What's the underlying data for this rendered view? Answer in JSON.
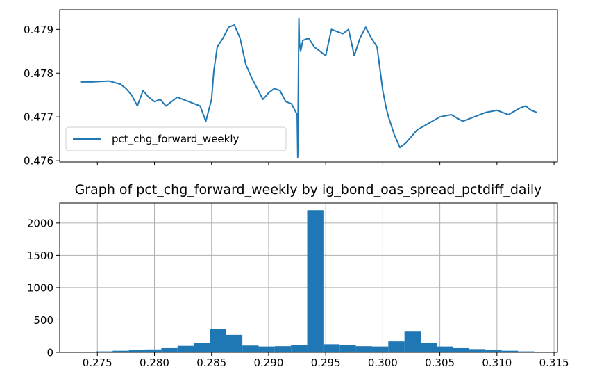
{
  "chart_data": [
    {
      "type": "line",
      "series": [
        {
          "name": "pct_chg_forward_weekly",
          "color": "#1f77b4",
          "x": [
            0.2735,
            0.2745,
            0.276,
            0.277,
            0.2775,
            0.278,
            0.2785,
            0.279,
            0.2795,
            0.28,
            0.2805,
            0.281,
            0.2815,
            0.282,
            0.2825,
            0.283,
            0.2835,
            0.284,
            0.2845,
            0.2848,
            0.285,
            0.2852,
            0.2855,
            0.286,
            0.2865,
            0.287,
            0.2875,
            0.288,
            0.2885,
            0.289,
            0.2895,
            0.29,
            0.2905,
            0.291,
            0.2915,
            0.292,
            0.2925,
            0.29255,
            0.29265,
            0.2927,
            0.2928,
            0.293,
            0.2935,
            0.294,
            0.2945,
            0.295,
            0.2955,
            0.296,
            0.2965,
            0.297,
            0.2975,
            0.298,
            0.2985,
            0.299,
            0.2995,
            0.3,
            0.3003,
            0.3005,
            0.301,
            0.3015,
            0.302,
            0.3025,
            0.303,
            0.304,
            0.305,
            0.306,
            0.307,
            0.308,
            0.309,
            0.31,
            0.311,
            0.312,
            0.3125,
            0.313,
            0.3135
          ],
          "y": [
            0.4778,
            0.4778,
            0.47782,
            0.47775,
            0.47765,
            0.4775,
            0.47725,
            0.4776,
            0.47745,
            0.47735,
            0.4774,
            0.47725,
            0.47735,
            0.47745,
            0.4774,
            0.47735,
            0.4773,
            0.47725,
            0.4769,
            0.4772,
            0.4774,
            0.47805,
            0.4786,
            0.4788,
            0.47905,
            0.4791,
            0.4788,
            0.4782,
            0.4779,
            0.47765,
            0.4774,
            0.47755,
            0.47765,
            0.4776,
            0.47735,
            0.4773,
            0.47705,
            0.47608,
            0.47925,
            0.4787,
            0.4785,
            0.47875,
            0.4788,
            0.4786,
            0.4785,
            0.4784,
            0.479,
            0.47895,
            0.4789,
            0.479,
            0.4784,
            0.4788,
            0.47905,
            0.4788,
            0.4786,
            0.4776,
            0.4772,
            0.477,
            0.4766,
            0.4763,
            0.4764,
            0.47655,
            0.4767,
            0.47685,
            0.477,
            0.47705,
            0.4769,
            0.477,
            0.4771,
            0.47715,
            0.47705,
            0.4772,
            0.47725,
            0.47715,
            0.4771
          ]
        }
      ],
      "ylim": [
        0.47597,
        0.47945
      ],
      "xlim": [
        0.2717,
        0.3153
      ],
      "yticks": [
        "0.476",
        "0.477",
        "0.478",
        "0.479"
      ],
      "ytick_values": [
        0.476,
        0.477,
        0.478,
        0.479
      ],
      "xtick_values": [
        0.275,
        0.28,
        0.285,
        0.29,
        0.295,
        0.3,
        0.305,
        0.31,
        0.315
      ],
      "legend": {
        "placement": "lower-left",
        "entries": [
          "pct_chg_forward_weekly"
        ]
      },
      "grid": false
    },
    {
      "type": "bar",
      "title": "Graph of pct_chg_forward_weekly by ig_bond_oas_spread_pctdiff_daily",
      "bin_edges": [
        0.2735,
        0.27492,
        0.27634,
        0.27776,
        0.27918,
        0.2806,
        0.28202,
        0.28344,
        0.28486,
        0.28628,
        0.2877,
        0.28912,
        0.29054,
        0.29196,
        0.29338,
        0.2948,
        0.29622,
        0.29764,
        0.29906,
        0.30048,
        0.3019,
        0.30332,
        0.30474,
        0.30616,
        0.30758,
        0.309,
        0.31042,
        0.31184,
        0.31326
      ],
      "values": [
        5,
        15,
        25,
        35,
        45,
        65,
        100,
        140,
        360,
        270,
        105,
        90,
        95,
        110,
        2200,
        125,
        110,
        95,
        90,
        170,
        320,
        145,
        90,
        65,
        50,
        35,
        25,
        15
      ],
      "color": "#1f77b4",
      "ylim": [
        0,
        2310
      ],
      "xlim": [
        0.2717,
        0.3153
      ],
      "xticks": [
        "0.275",
        "0.280",
        "0.285",
        "0.290",
        "0.295",
        "0.300",
        "0.305",
        "0.310",
        "0.315"
      ],
      "xtick_values": [
        0.275,
        0.28,
        0.285,
        0.29,
        0.295,
        0.3,
        0.305,
        0.31,
        0.315
      ],
      "yticks": [
        "0",
        "500",
        "1000",
        "1500",
        "2000"
      ],
      "ytick_values": [
        0,
        500,
        1000,
        1500,
        2000
      ],
      "grid": true
    }
  ]
}
